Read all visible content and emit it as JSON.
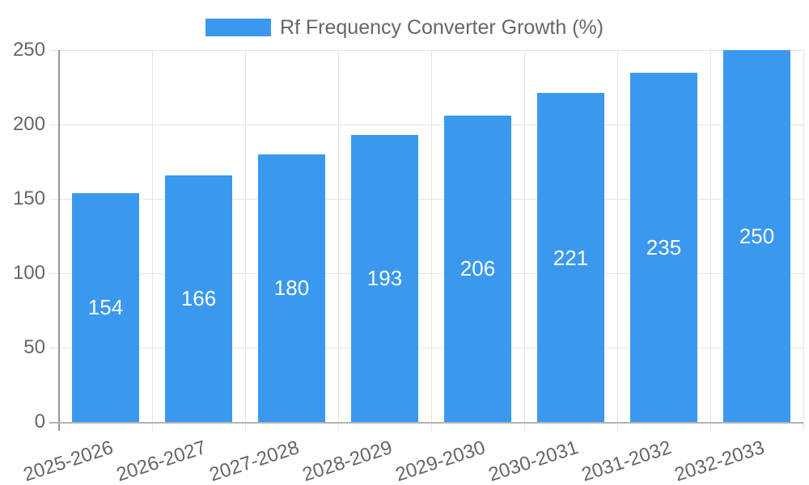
{
  "legend": {
    "label": "Rf Frequency Converter Growth (%)"
  },
  "chart_data": {
    "type": "bar",
    "title": "",
    "series_name": "Rf Frequency Converter Growth (%)",
    "categories": [
      "2025-2026",
      "2026-2027",
      "2027-2028",
      "2028-2029",
      "2029-2030",
      "2030-2031",
      "2031-2032",
      "2032-2033"
    ],
    "values": [
      154,
      166,
      180,
      193,
      206,
      221,
      235,
      250
    ],
    "xlabel": "",
    "ylabel": "",
    "ylim": [
      0,
      250
    ],
    "yticks": [
      0,
      50,
      100,
      150,
      200,
      250
    ],
    "grid": true,
    "legend_position": "top-center",
    "x_label_rotation_deg": -18,
    "value_labels_position": "center-of-bar",
    "colors": {
      "bar": "#3a99ee",
      "value_label": "#ffffff",
      "axis_text": "#666666",
      "gridline": "#e5e5e5",
      "axis_line": "#959595",
      "baseline": "#b3b3b3",
      "background": "#ffffff"
    }
  }
}
